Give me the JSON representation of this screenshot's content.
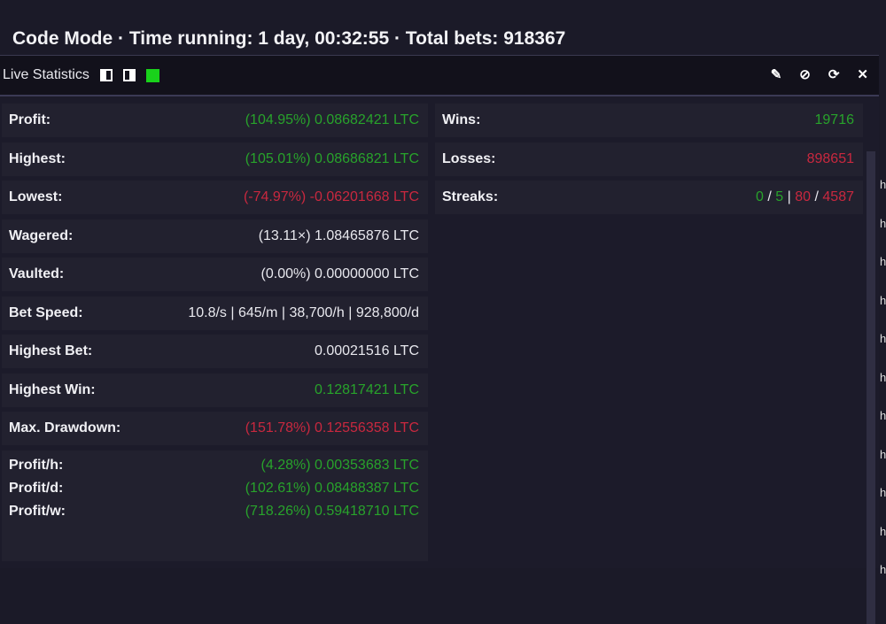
{
  "header": {
    "title": "Code Mode · Time running: 1 day, 00:32:55 · Total bets: 918367"
  },
  "panel": {
    "title": "Live Statistics",
    "icons": [
      "panel-left-icon",
      "panel-right-icon",
      "green-status-icon",
      "edit-icon",
      "hide-icon",
      "refresh-icon",
      "close-icon"
    ]
  },
  "left": [
    {
      "k": "Profit:",
      "v": "(104.95%) 0.08682421 LTC",
      "c": "g"
    },
    {
      "k": "Highest:",
      "v": "(105.01%) 0.08686821 LTC",
      "c": "g"
    },
    {
      "k": "Lowest:",
      "v": "(-74.97%) -0.06201668 LTC",
      "c": "r"
    },
    {
      "k": "Wagered:",
      "v": "(13.11×) 1.08465876 LTC",
      "c": "w"
    },
    {
      "k": "Vaulted:",
      "v": "(0.00%) 0.00000000 LTC",
      "c": "w"
    },
    {
      "k": "Bet Speed:",
      "v": "10.8/s | 645/m | 38,700/h | 928,800/d",
      "c": "w"
    },
    {
      "k": "Highest Bet:",
      "v": "0.00021516 LTC",
      "c": "w"
    },
    {
      "k": "Highest Win:",
      "v": "0.12817421 LTC",
      "c": "g"
    },
    {
      "k": "Max. Drawdown:",
      "v": "(151.78%) 0.12556358 LTC",
      "c": "r"
    }
  ],
  "rates": [
    {
      "k": "Profit/h:",
      "v": "(4.28%) 0.00353683 LTC"
    },
    {
      "k": "Profit/d:",
      "v": "(102.61%) 0.08488387 LTC"
    },
    {
      "k": "Profit/w:",
      "v": "(718.26%) 0.59418710 LTC"
    }
  ],
  "right": {
    "wins_label": "Wins:",
    "wins": "19716",
    "losses_label": "Losses:",
    "losses": "898651",
    "streaks_label": "Streaks:",
    "streaks": [
      "0",
      "5",
      "80",
      "4587"
    ],
    "sep1": "/",
    "sep2": "|"
  },
  "colors": {
    "positive": "#28a32b",
    "negative": "#c9283f",
    "status": "#19d21b"
  },
  "edge_letters": [
    "h",
    "h",
    "h",
    "h",
    "h",
    "h",
    "h",
    "h",
    "h",
    "h",
    "h"
  ]
}
